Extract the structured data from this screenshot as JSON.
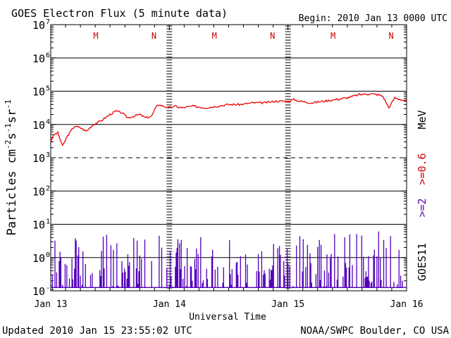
{
  "chart_data": {
    "type": "line",
    "title": "GOES Electron Flux (5 minute data)",
    "begin": "Begin: 2010 Jan 13 0000 UTC",
    "xlabel": "Universal Time",
    "ylabel_html": "Particles cm⁻²s⁻¹sr⁻¹",
    "ylabel_parts": [
      {
        "t": "Particles cm",
        "sup": false
      },
      {
        "t": "-2",
        "sup": true
      },
      {
        "t": "s",
        "sup": false
      },
      {
        "t": "-1",
        "sup": true
      },
      {
        "t": "sr",
        "sup": false
      },
      {
        "t": "-1",
        "sup": true
      }
    ],
    "x_range_days": [
      0,
      3
    ],
    "x_ticks": [
      {
        "day": 0,
        "label": "Jan 13"
      },
      {
        "day": 1,
        "label": "Jan 14"
      },
      {
        "day": 2,
        "label": "Jan 15"
      },
      {
        "day": 3,
        "label": "Jan 16"
      }
    ],
    "ylim_exp": [
      -1,
      7
    ],
    "y_ticks": [
      {
        "exp": 7,
        "base": "10",
        "sup": "7"
      },
      {
        "exp": 6,
        "base": "10",
        "sup": "6"
      },
      {
        "exp": 5,
        "base": "10",
        "sup": "5"
      },
      {
        "exp": 4,
        "base": "10",
        "sup": "4"
      },
      {
        "exp": 3,
        "base": "10",
        "sup": "3"
      },
      {
        "exp": 2,
        "base": "10",
        "sup": "2"
      },
      {
        "exp": 1,
        "base": "10",
        "sup": "1"
      },
      {
        "exp": 0,
        "base": "10",
        "sup": "0"
      },
      {
        "exp": -1,
        "base": "10",
        "sup": "-1"
      }
    ],
    "solid_gridlines_exp": [
      6,
      5,
      4,
      2,
      1,
      0
    ],
    "dashed_gridlines_exp": [
      3
    ],
    "mn_markers": [
      {
        "day": 0.38,
        "label": "M"
      },
      {
        "day": 0.87,
        "label": "N"
      },
      {
        "day": 1.38,
        "label": "M"
      },
      {
        "day": 1.87,
        "label": "N"
      },
      {
        "day": 2.38,
        "label": "M"
      },
      {
        "day": 2.87,
        "label": "N"
      }
    ],
    "right_labels": [
      {
        "text": "MeV",
        "color": "#000000"
      },
      {
        "text": ">=0.6",
        "color": "#cc0000"
      },
      {
        "text": ">=2",
        "color": "#5500aa"
      },
      {
        "text": "GOES11",
        "color": "#000000"
      }
    ],
    "series": [
      {
        "name": ">=0.6 MeV",
        "color": "#ee0000",
        "x_days": [
          0.0,
          0.03,
          0.06,
          0.1,
          0.14,
          0.17,
          0.2,
          0.25,
          0.3,
          0.36,
          0.42,
          0.5,
          0.55,
          0.6,
          0.65,
          0.7,
          0.75,
          0.8,
          0.85,
          0.9,
          0.95,
          1.0,
          1.05,
          1.1,
          1.2,
          1.3,
          1.4,
          1.5,
          1.6,
          1.7,
          1.8,
          1.9,
          2.0,
          2.05,
          2.1,
          2.2,
          2.3,
          2.4,
          2.5,
          2.6,
          2.7,
          2.75,
          2.8,
          2.85,
          2.9,
          2.95,
          3.0
        ],
        "log10_values": [
          3.5,
          3.7,
          3.75,
          3.35,
          3.65,
          3.8,
          3.95,
          3.9,
          3.8,
          4.0,
          4.1,
          4.3,
          4.4,
          4.35,
          4.2,
          4.25,
          4.3,
          4.2,
          4.25,
          4.6,
          4.55,
          4.5,
          4.55,
          4.5,
          4.55,
          4.5,
          4.55,
          4.6,
          4.6,
          4.65,
          4.65,
          4.7,
          4.7,
          4.75,
          4.7,
          4.65,
          4.7,
          4.75,
          4.8,
          4.9,
          4.92,
          4.9,
          4.85,
          4.5,
          4.8,
          4.75,
          4.7
        ]
      },
      {
        "name": ">=2 MeV",
        "color": "#5500bb",
        "x_range_days": [
          0,
          3
        ],
        "log10_baseline": -0.9,
        "log10_typical_spike_max": 0.7,
        "log10_peak": 1.1,
        "log10_peak_day": 2.6
      }
    ],
    "footer_left": "Updated 2010 Jan 15 23:55:02 UTC",
    "footer_right": "NOAA/SWPC Boulder, CO USA"
  }
}
